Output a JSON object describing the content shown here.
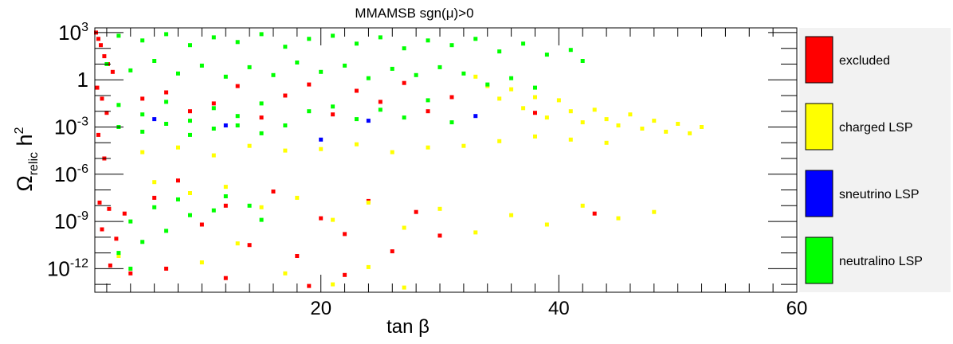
{
  "chart_data": {
    "type": "scatter",
    "title": "MMAMSB    sgn(μ)>0",
    "xlabel": "tan β",
    "ylabel": {
      "main": "Ω",
      "sub": "relic",
      "rest": " h",
      "sup": "2"
    },
    "xlim": [
      1,
      60
    ],
    "ylim_log10": [
      -13.5,
      3.3
    ],
    "x_ticks": [
      "20",
      "40",
      "60"
    ],
    "x_tick_values": [
      20,
      40,
      60
    ],
    "y_ticks": [
      {
        "base": "10",
        "exp": "3",
        "log10": 3
      },
      {
        "base": "1",
        "exp": "",
        "log10": 0
      },
      {
        "base": "10",
        "exp": "-3",
        "log10": -3
      },
      {
        "base": "10",
        "exp": "-6",
        "log10": -6
      },
      {
        "base": "10",
        "exp": "-9",
        "log10": -9
      },
      {
        "base": "10",
        "exp": "-12",
        "log10": -12
      }
    ],
    "legend": [
      "excluded",
      "charged LSP",
      "sneutrino LSP",
      "neutralino LSP"
    ],
    "legend_position": "right",
    "series": [
      {
        "name": "excluded",
        "color": "#ff0000",
        "points": [
          [
            1.1,
            3.0
          ],
          [
            1.3,
            2.6
          ],
          [
            1.5,
            2.2
          ],
          [
            1.8,
            1.5
          ],
          [
            2.1,
            1.0
          ],
          [
            2.5,
            0.5
          ],
          [
            1.2,
            -0.5
          ],
          [
            1.6,
            -1.2
          ],
          [
            2.0,
            -2.1
          ],
          [
            1.3,
            -3.5
          ],
          [
            1.8,
            -5.0
          ],
          [
            1.4,
            -7.8
          ],
          [
            2.2,
            -8.2
          ],
          [
            1.6,
            -9.5
          ],
          [
            2.8,
            -10.1
          ],
          [
            2.3,
            -11.8
          ],
          [
            3.5,
            -8.5
          ],
          [
            5,
            -1.2
          ],
          [
            7,
            -0.8
          ],
          [
            9,
            -2.0
          ],
          [
            11,
            -1.5
          ],
          [
            13,
            -0.4
          ],
          [
            15,
            -2.4
          ],
          [
            17,
            -1.0
          ],
          [
            19,
            -0.3
          ],
          [
            21,
            -2.2
          ],
          [
            23,
            -0.7
          ],
          [
            25,
            -1.4
          ],
          [
            27,
            -0.2
          ],
          [
            29,
            -2.0
          ],
          [
            31,
            -1.1
          ],
          [
            6,
            -7.5
          ],
          [
            8,
            -6.4
          ],
          [
            10,
            -9.2
          ],
          [
            12,
            -8.0
          ],
          [
            14,
            -10.5
          ],
          [
            16,
            -7.1
          ],
          [
            18,
            -11.2
          ],
          [
            20,
            -8.8
          ],
          [
            22,
            -9.8
          ],
          [
            24,
            -7.7
          ],
          [
            26,
            -10.9
          ],
          [
            28,
            -8.4
          ],
          [
            4,
            -12.3
          ],
          [
            7,
            -12.0
          ],
          [
            12,
            -12.6
          ],
          [
            19,
            -13.1
          ],
          [
            22,
            -12.4
          ],
          [
            30,
            -9.9
          ],
          [
            38,
            -2.1
          ],
          [
            43,
            -8.5
          ]
        ]
      },
      {
        "name": "charged LSP",
        "color": "#ffff00",
        "points": [
          [
            33,
            0.2
          ],
          [
            34,
            -0.4
          ],
          [
            35,
            -1.2
          ],
          [
            36,
            -0.6
          ],
          [
            37,
            -1.8
          ],
          [
            38,
            -1.1
          ],
          [
            39,
            -2.4
          ],
          [
            40,
            -1.3
          ],
          [
            41,
            -2.0
          ],
          [
            42,
            -2.7
          ],
          [
            43,
            -1.9
          ],
          [
            44,
            -2.5
          ],
          [
            45,
            -2.9
          ],
          [
            46,
            -2.2
          ],
          [
            47,
            -3.1
          ],
          [
            48,
            -2.6
          ],
          [
            49,
            -3.3
          ],
          [
            50,
            -2.8
          ],
          [
            51,
            -3.4
          ],
          [
            52,
            -3.0
          ],
          [
            5,
            -4.6
          ],
          [
            8,
            -4.3
          ],
          [
            11,
            -4.8
          ],
          [
            14,
            -4.2
          ],
          [
            17,
            -4.5
          ],
          [
            20,
            -4.4
          ],
          [
            23,
            -4.1
          ],
          [
            26,
            -4.6
          ],
          [
            29,
            -4.3
          ],
          [
            32,
            -4.2
          ],
          [
            35,
            -3.9
          ],
          [
            38,
            -3.6
          ],
          [
            41,
            -3.8
          ],
          [
            44,
            -4.0
          ],
          [
            6,
            -6.5
          ],
          [
            9,
            -7.2
          ],
          [
            12,
            -6.8
          ],
          [
            15,
            -8.1
          ],
          [
            18,
            -7.5
          ],
          [
            21,
            -8.9
          ],
          [
            24,
            -7.8
          ],
          [
            27,
            -9.4
          ],
          [
            30,
            -8.2
          ],
          [
            33,
            -9.7
          ],
          [
            36,
            -8.6
          ],
          [
            39,
            -9.2
          ],
          [
            42,
            -8.0
          ],
          [
            45,
            -8.8
          ],
          [
            48,
            -8.4
          ],
          [
            3,
            -11.2
          ],
          [
            10,
            -11.6
          ],
          [
            17,
            -12.3
          ],
          [
            24,
            -11.9
          ],
          [
            27,
            -13.2
          ],
          [
            21,
            -13.0
          ],
          [
            13,
            -10.4
          ]
        ]
      },
      {
        "name": "sneutrino LSP",
        "color": "#0000ff",
        "points": [
          [
            6,
            -2.5
          ],
          [
            12,
            -2.9
          ],
          [
            20,
            -3.8
          ],
          [
            24,
            -2.6
          ],
          [
            33,
            -2.3
          ]
        ]
      },
      {
        "name": "neutralino LSP",
        "color": "#00ff00",
        "points": [
          [
            3,
            2.8
          ],
          [
            5,
            2.5
          ],
          [
            7,
            2.9
          ],
          [
            9,
            2.2
          ],
          [
            11,
            2.7
          ],
          [
            13,
            2.4
          ],
          [
            15,
            2.9
          ],
          [
            17,
            2.1
          ],
          [
            19,
            2.6
          ],
          [
            21,
            2.8
          ],
          [
            23,
            2.3
          ],
          [
            25,
            2.7
          ],
          [
            27,
            2.0
          ],
          [
            29,
            2.5
          ],
          [
            31,
            2.2
          ],
          [
            33,
            2.6
          ],
          [
            35,
            1.8
          ],
          [
            37,
            2.3
          ],
          [
            39,
            1.6
          ],
          [
            41,
            1.9
          ],
          [
            42,
            1.2
          ],
          [
            2,
            1.0
          ],
          [
            4,
            0.6
          ],
          [
            6,
            1.2
          ],
          [
            8,
            0.4
          ],
          [
            10,
            0.9
          ],
          [
            12,
            0.2
          ],
          [
            14,
            0.8
          ],
          [
            16,
            0.3
          ],
          [
            18,
            1.1
          ],
          [
            20,
            0.5
          ],
          [
            22,
            0.9
          ],
          [
            24,
            0.1
          ],
          [
            26,
            0.7
          ],
          [
            28,
            0.3
          ],
          [
            30,
            0.8
          ],
          [
            32,
            0.4
          ],
          [
            34,
            -0.3
          ],
          [
            36,
            0.1
          ],
          [
            38,
            -0.5
          ],
          [
            3,
            -1.6
          ],
          [
            5,
            -2.2
          ],
          [
            7,
            -1.4
          ],
          [
            9,
            -2.6
          ],
          [
            11,
            -1.8
          ],
          [
            13,
            -2.3
          ],
          [
            15,
            -1.5
          ],
          [
            17,
            -2.9
          ],
          [
            19,
            -2.0
          ],
          [
            21,
            -1.7
          ],
          [
            23,
            -2.5
          ],
          [
            25,
            -1.9
          ],
          [
            27,
            -2.4
          ],
          [
            29,
            -1.3
          ],
          [
            31,
            -2.7
          ],
          [
            3,
            -3.0
          ],
          [
            5,
            -3.3
          ],
          [
            7,
            -2.8
          ],
          [
            9,
            -3.5
          ],
          [
            11,
            -3.1
          ],
          [
            13,
            -2.9
          ],
          [
            15,
            -3.4
          ],
          [
            4,
            -9.0
          ],
          [
            6,
            -8.1
          ],
          [
            8,
            -7.6
          ],
          [
            9,
            -8.6
          ],
          [
            11,
            -8.3
          ],
          [
            12,
            -7.4
          ],
          [
            14,
            -8.0
          ],
          [
            15,
            -8.9
          ],
          [
            3,
            -11.0
          ],
          [
            5,
            -10.3
          ],
          [
            7,
            -9.6
          ],
          [
            4,
            -12.0
          ]
        ]
      }
    ]
  }
}
